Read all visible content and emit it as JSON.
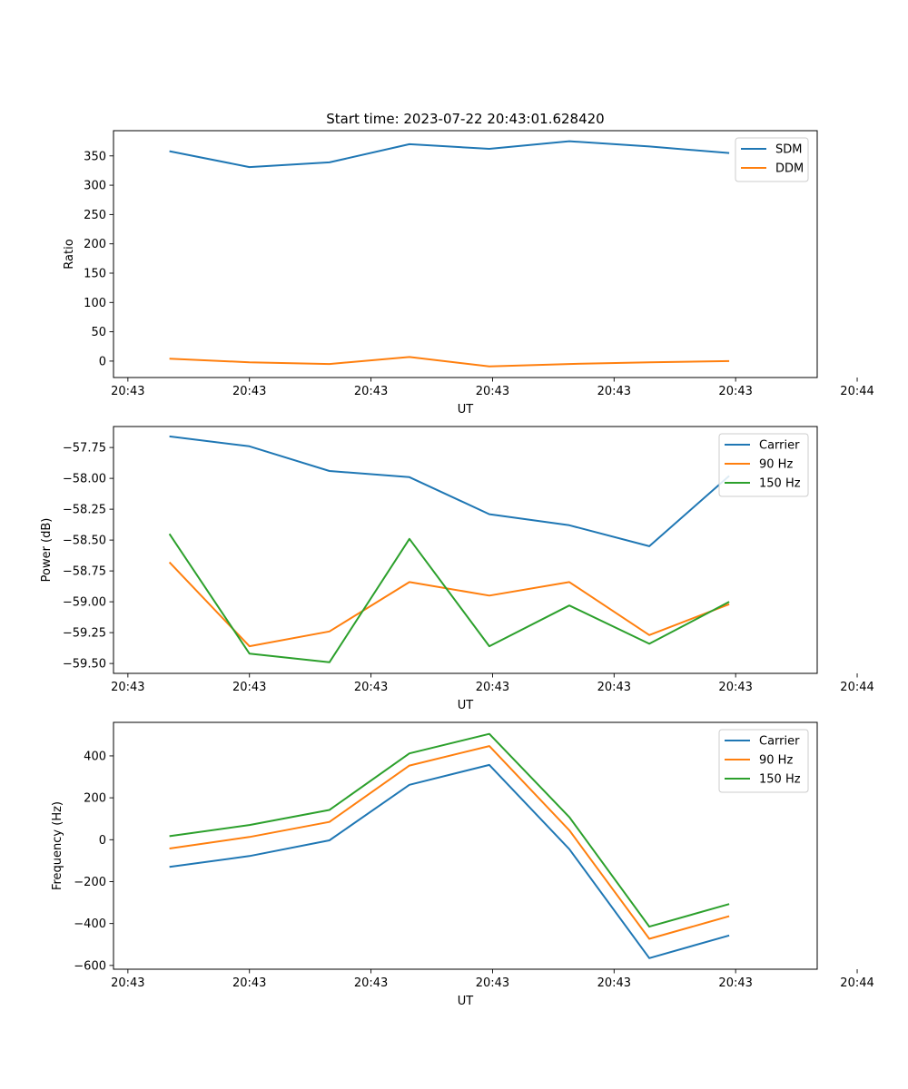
{
  "figure": {
    "suptitle": "Start time: 2023-07-22 20:43:01.628420"
  },
  "colors": {
    "c0": "#1f77b4",
    "c1": "#ff7f0e",
    "c2": "#2ca02c"
  },
  "chart_data": [
    {
      "type": "line",
      "title": "Start time: 2023-07-22 20:43:01.628420",
      "xlabel": "UT",
      "ylabel": "Ratio",
      "x": [
        1,
        2,
        3,
        4,
        5,
        6,
        7,
        8
      ],
      "xlim": [
        0.3,
        9.1
      ],
      "x_ticks": [
        0.48,
        2.0,
        3.52,
        5.04,
        6.56,
        8.08,
        9.6
      ],
      "x_tick_labels": [
        "20:43",
        "20:43",
        "20:43",
        "20:43",
        "20:43",
        "20:43",
        "20:44"
      ],
      "ylim": [
        -28,
        393
      ],
      "y_ticks": [
        0,
        50,
        100,
        150,
        200,
        250,
        300,
        350
      ],
      "y_tick_labels": [
        "0",
        "50",
        "100",
        "150",
        "200",
        "250",
        "300",
        "350"
      ],
      "legend": "top-right",
      "series": [
        {
          "name": "SDM",
          "color": "#1f77b4",
          "values": [
            358,
            331,
            339,
            370,
            362,
            375,
            366,
            355
          ]
        },
        {
          "name": "DDM",
          "color": "#ff7f0e",
          "values": [
            4,
            -2,
            -5,
            7,
            -9,
            -5,
            -2,
            0
          ]
        }
      ]
    },
    {
      "type": "line",
      "title": "",
      "xlabel": "UT",
      "ylabel": "Power (dB)",
      "x": [
        1,
        2,
        3,
        4,
        5,
        6,
        7,
        8
      ],
      "xlim": [
        0.3,
        9.1
      ],
      "x_ticks": [
        0.48,
        2.0,
        3.52,
        5.04,
        6.56,
        8.08,
        9.6
      ],
      "x_tick_labels": [
        "20:43",
        "20:43",
        "20:43",
        "20:43",
        "20:43",
        "20:43",
        "20:44"
      ],
      "ylim": [
        -59.58,
        -57.58
      ],
      "y_ticks": [
        -57.75,
        -58.0,
        -58.25,
        -58.5,
        -58.75,
        -59.0,
        -59.25,
        -59.5
      ],
      "y_tick_labels": [
        "−57.75",
        "−58.00",
        "−58.25",
        "−58.50",
        "−58.75",
        "−59.00",
        "−59.25",
        "−59.50"
      ],
      "legend": "top-right",
      "series": [
        {
          "name": "Carrier",
          "color": "#1f77b4",
          "values": [
            -57.66,
            -57.74,
            -57.94,
            -57.99,
            -58.29,
            -58.38,
            -58.55,
            -57.98
          ]
        },
        {
          "name": "90 Hz",
          "color": "#ff7f0e",
          "values": [
            -58.68,
            -59.36,
            -59.24,
            -58.84,
            -58.95,
            -58.84,
            -59.27,
            -59.02
          ]
        },
        {
          "name": "150 Hz",
          "color": "#2ca02c",
          "values": [
            -58.45,
            -59.42,
            -59.49,
            -58.49,
            -59.36,
            -59.03,
            -59.34,
            -59.0
          ]
        }
      ]
    },
    {
      "type": "line",
      "title": "",
      "xlabel": "UT",
      "ylabel": "Frequency (Hz)",
      "x": [
        1,
        2,
        3,
        4,
        5,
        6,
        7,
        8
      ],
      "xlim": [
        0.3,
        9.1
      ],
      "x_ticks": [
        0.48,
        2.0,
        3.52,
        5.04,
        6.56,
        8.08,
        9.6
      ],
      "x_tick_labels": [
        "20:43",
        "20:43",
        "20:43",
        "20:43",
        "20:43",
        "20:43",
        "20:44"
      ],
      "ylim": [
        -618,
        560
      ],
      "y_ticks": [
        -600,
        -400,
        -200,
        0,
        200,
        400
      ],
      "y_tick_labels": [
        "−600",
        "−400",
        "−200",
        "0",
        "200",
        "400"
      ],
      "legend": "top-right",
      "series": [
        {
          "name": "Carrier",
          "color": "#1f77b4",
          "values": [
            -130,
            -78,
            -3,
            262,
            357,
            -45,
            -565,
            -457
          ]
        },
        {
          "name": "90 Hz",
          "color": "#ff7f0e",
          "values": [
            -42,
            13,
            85,
            354,
            447,
            45,
            -473,
            -365
          ]
        },
        {
          "name": "150 Hz",
          "color": "#2ca02c",
          "values": [
            17,
            70,
            142,
            412,
            505,
            108,
            -415,
            -307
          ]
        }
      ]
    }
  ]
}
